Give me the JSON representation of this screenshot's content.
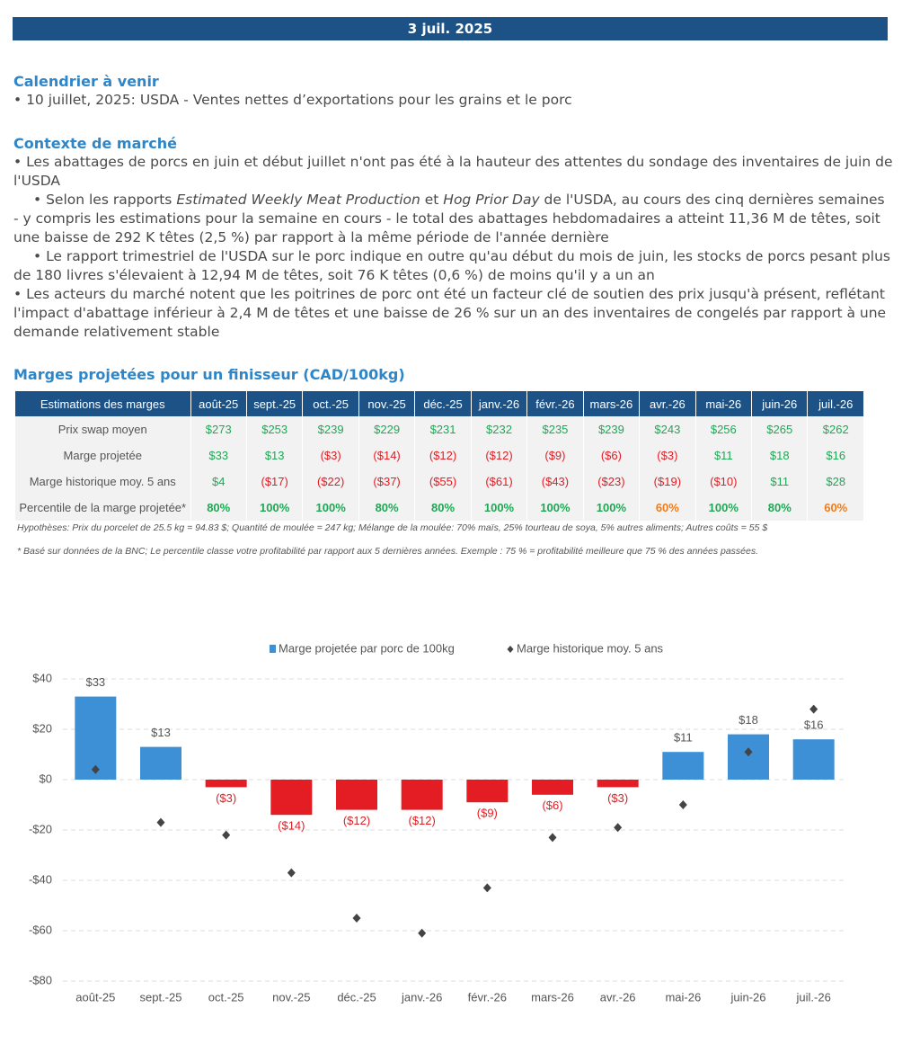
{
  "header": {
    "date": "3 juil. 2025"
  },
  "calendar": {
    "title": "Calendrier à venir",
    "items": [
      "• 10 juillet, 2025: USDA - Ventes nettes d’exportations pour les grains et le porc"
    ]
  },
  "context": {
    "title": "Contexte de marché",
    "paragraphs": [
      {
        "indent": false,
        "segments": [
          "• Les abattages de porcs en juin et début juillet n'ont pas été à la hauteur des attentes du sondage des inventaires de juin de l'USDA"
        ]
      },
      {
        "indent": true,
        "segments": [
          "• Selon les rapports ",
          "Estimated Weekly Meat Production",
          " et ",
          "Hog Prior Day",
          " de l'USDA, au cours des cinq dernières semaines - y compris les estimations pour la semaine en cours - le total des abattages hebdomadaires a atteint 11,36 M de têtes, soit une baisse de 292 K têtes (2,5 %) par rapport à la même période de l'année dernière"
        ]
      },
      {
        "indent": true,
        "segments": [
          "• Le rapport trimestriel de l'USDA sur le porc indique en outre qu'au début du mois de juin, les stocks de porcs pesant plus de 180 livres s'élevaient à 12,94 M de têtes, soit 76 K têtes (0,6 %) de moins qu'il y a un an"
        ]
      },
      {
        "indent": false,
        "segments": [
          "• Les acteurs du marché notent que les poitrines de porc ont été un facteur clé de soutien des prix jusqu'à présent, reflétant l'impact d'abattage inférieur à 2,4 M de têtes et une baisse de 26 % sur un an des inventaires de congelés par rapport à une demande relativement stable"
        ]
      }
    ]
  },
  "table": {
    "title": "Marges projetées pour un finisseur (CAD/100kg)",
    "header": [
      "Estimations des marges",
      "août-25",
      "sept.-25",
      "oct.-25",
      "nov.-25",
      "déc.-25",
      "janv.-26",
      "févr.-26",
      "mars-26",
      "avr.-26",
      "mai-26",
      "juin-26",
      "juil.-26"
    ],
    "rows": [
      [
        "Prix swap moyen",
        "$273",
        "$253",
        "$239",
        "$229",
        "$231",
        "$232",
        "$235",
        "$239",
        "$243",
        "$256",
        "$265",
        "$262"
      ],
      [
        "Marge projetée",
        "$33",
        "$13",
        "($3)",
        "($14)",
        "($12)",
        "($12)",
        "($9)",
        "($6)",
        "($3)",
        "$11",
        "$18",
        "$16"
      ],
      [
        "Marge historique moy. 5 ans",
        "$4",
        "($17)",
        "($22)",
        "($37)",
        "($55)",
        "($61)",
        "($43)",
        "($23)",
        "($19)",
        "($10)",
        "$11",
        "$28"
      ],
      [
        "Percentile de la marge projetée*",
        "80%",
        "100%",
        "100%",
        "80%",
        "80%",
        "100%",
        "100%",
        "100%",
        "60%",
        "100%",
        "80%",
        "60%"
      ]
    ],
    "notes": [
      "Hypothèses: Prix du porcelet de 25.5 kg = 94.83 $; Quantité de moulée = 247 kg; Mélange de la moulée: 70% maïs, 25% tourteau de soya, 5% autres aliments; Autres coûts = 55 $",
      "* Basé sur données de la BNC; Le percentile classe votre profitabilité par rapport aux 5 dernières années. Exemple : 75 % = profitabilité meilleure que 75 % des années passées."
    ]
  },
  "chart_data": {
    "type": "bar",
    "categories": [
      "août-25",
      "sept.-25",
      "oct.-25",
      "nov.-25",
      "déc.-25",
      "janv.-26",
      "févr.-26",
      "mars-26",
      "avr.-26",
      "mai-26",
      "juin-26",
      "juil.-26"
    ],
    "series": [
      {
        "name": "Marge projetée par porc de 100kg",
        "color": "#3d8fd6",
        "negative_color": "#e41c23",
        "type": "bar",
        "values": [
          33,
          13,
          -3,
          -14,
          -12,
          -12,
          -9,
          -6,
          -3,
          11,
          18,
          16
        ],
        "value_labels": [
          "$33",
          "$13",
          "($3)",
          "($14)",
          "($12)",
          "($12)",
          "($9)",
          "($6)",
          "($3)",
          "$11",
          "$18",
          "$16"
        ]
      },
      {
        "name": "Marge historique moy. 5 ans",
        "color": "#444444",
        "type": "scatter",
        "values": [
          4,
          -17,
          -22,
          -37,
          -55,
          -61,
          -43,
          -23,
          -19,
          -10,
          11,
          28
        ]
      }
    ],
    "ylim": [
      -80,
      40
    ],
    "yticks": [
      {
        "value": -80,
        "label": "-$80"
      },
      {
        "value": -60,
        "label": "-$60"
      },
      {
        "value": -40,
        "label": "-$40"
      },
      {
        "value": -20,
        "label": "-$20"
      },
      {
        "value": 0,
        "label": "$0"
      },
      {
        "value": 20,
        "label": "$20"
      },
      {
        "value": 40,
        "label": "$40"
      }
    ],
    "grid": true,
    "legend": "top"
  }
}
